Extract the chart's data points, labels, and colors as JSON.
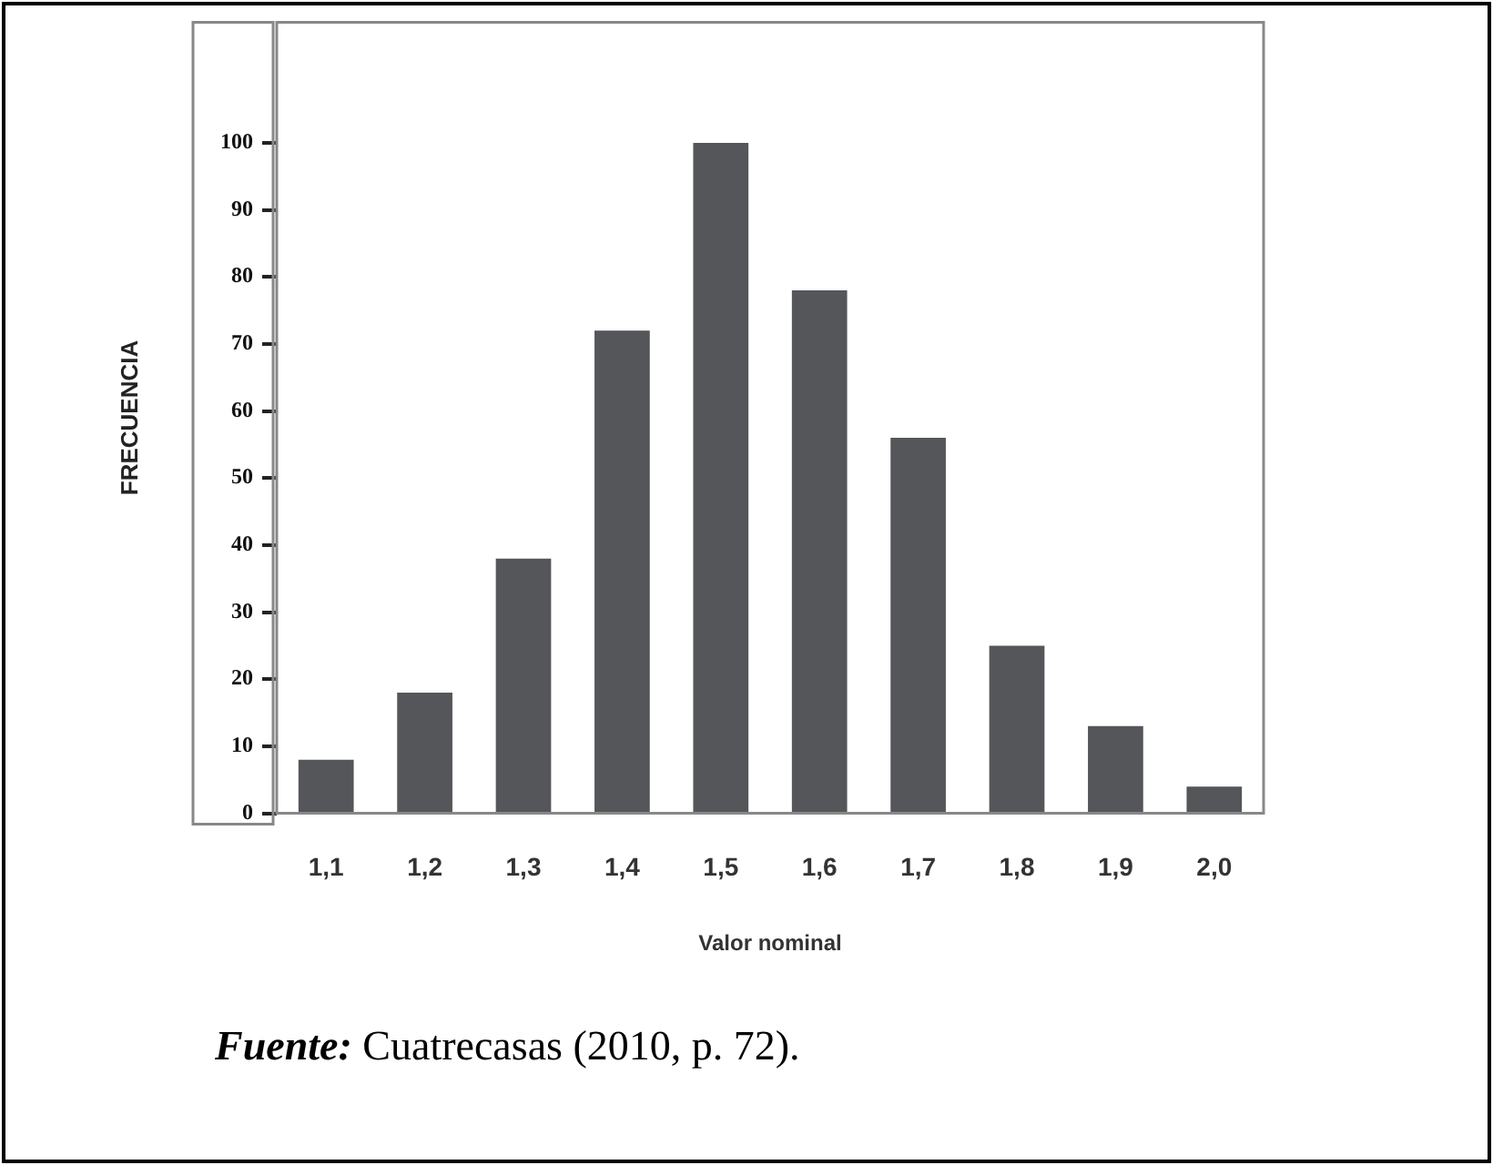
{
  "chart_data": {
    "type": "bar",
    "categories": [
      "1,1",
      "1,2",
      "1,3",
      "1,4",
      "1,5",
      "1,6",
      "1,7",
      "1,8",
      "1,9",
      "2,0"
    ],
    "values": [
      8,
      18,
      38,
      72,
      100,
      78,
      56,
      25,
      13,
      4
    ],
    "color": "#55565a",
    "xlabel": "Valor nominal",
    "ylabel": "FRECUENCIA",
    "ylim": [
      0,
      118
    ],
    "yticks": [
      0,
      10,
      20,
      30,
      40,
      50,
      60,
      70,
      80,
      90,
      100
    ],
    "grid": false,
    "legend": false,
    "annotations": [
      "Fuente: Cuatrecasas (2010, p. 72)."
    ]
  }
}
